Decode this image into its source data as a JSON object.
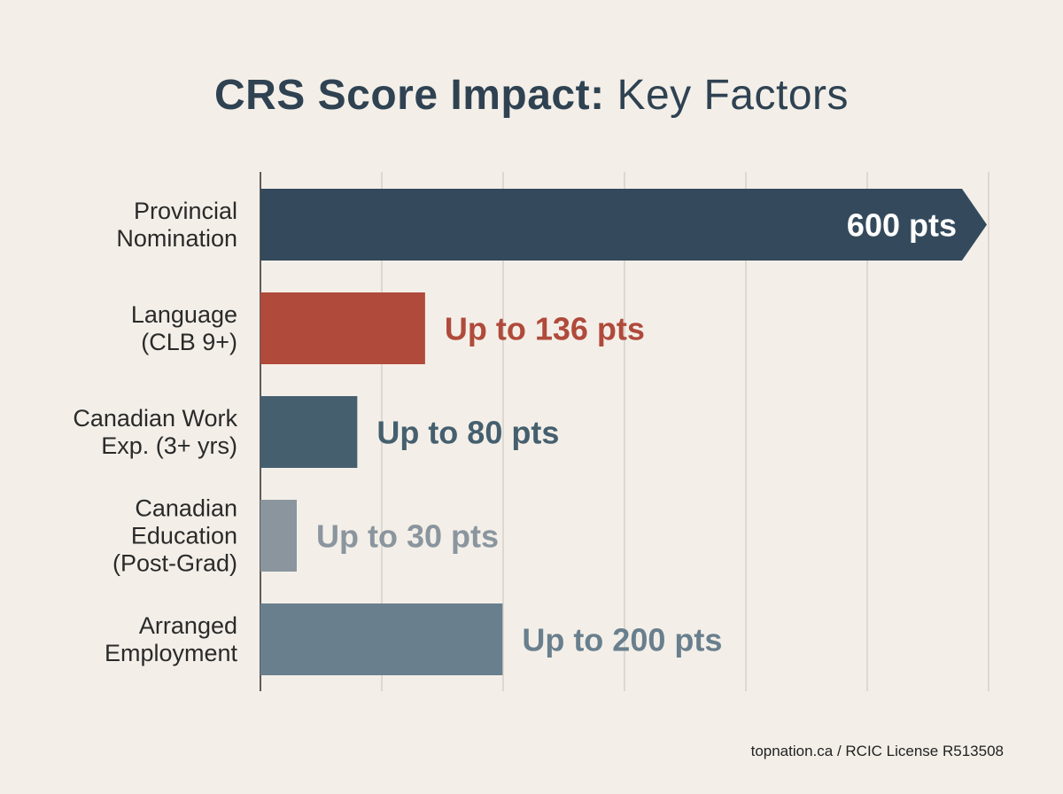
{
  "title": {
    "bold": "CRS Score Impact:",
    "light": "Key Factors"
  },
  "footer": "topnation.ca / RCIC License R513508",
  "chart_data": {
    "type": "bar",
    "orientation": "horizontal",
    "categories": [
      [
        "Provincial",
        "Nomination"
      ],
      [
        "Language",
        "(CLB 9+)"
      ],
      [
        "Canadian Work",
        "Exp. (3+ yrs)"
      ],
      [
        "Canadian",
        "Education",
        "(Post-Grad)"
      ],
      [
        "Arranged",
        "Employment"
      ]
    ],
    "values": [
      600,
      136,
      80,
      30,
      200
    ],
    "value_labels": [
      "600 pts",
      "Up to 136 pts",
      "Up to 80 pts",
      "Up to 30 pts",
      "Up to 200 pts"
    ],
    "colors": [
      "#344a5c",
      "#b04a3b",
      "#455f6e",
      "#8a959e",
      "#697f8e"
    ],
    "label_colors": [
      "#ffffff",
      "#b04a3b",
      "#455f6e",
      "#8a959e",
      "#697f8e"
    ],
    "label_inside": [
      true,
      false,
      false,
      false,
      false
    ],
    "first_bar_arrow": true,
    "xlim": [
      0,
      600
    ],
    "grid": true,
    "gridline_count": 6
  }
}
